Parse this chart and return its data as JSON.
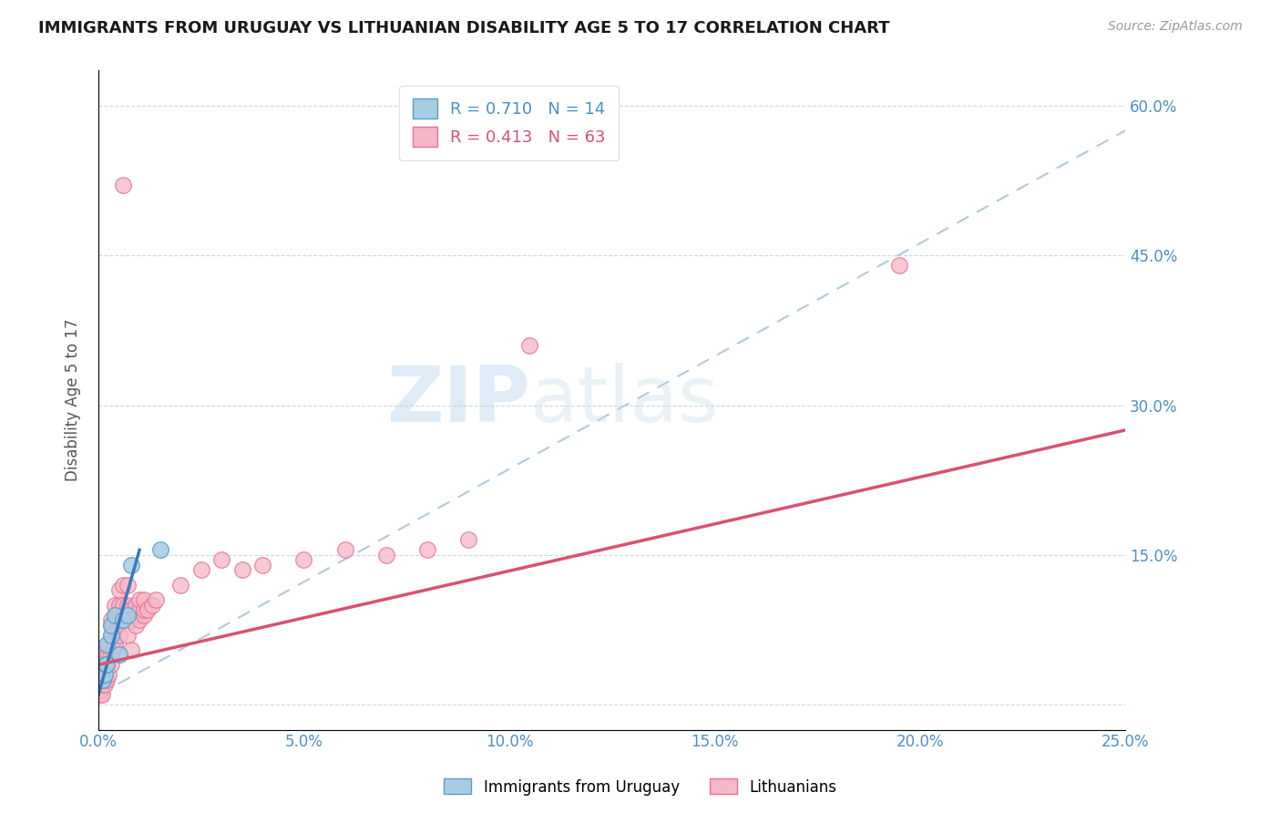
{
  "title": "IMMIGRANTS FROM URUGUAY VS LITHUANIAN DISABILITY AGE 5 TO 17 CORRELATION CHART",
  "source": "Source: ZipAtlas.com",
  "ylabel": "Disability Age 5 to 17",
  "y_ticks": [
    0.0,
    0.15,
    0.3,
    0.45,
    0.6
  ],
  "y_tick_labels": [
    "",
    "15.0%",
    "30.0%",
    "45.0%",
    "60.0%"
  ],
  "x_ticks": [
    0.0,
    0.05,
    0.1,
    0.15,
    0.2,
    0.25
  ],
  "x_tick_labels": [
    "0.0%",
    "5.0%",
    "10.0%",
    "15.0%",
    "20.0%",
    "25.0%"
  ],
  "x_range": [
    0.0,
    0.25
  ],
  "y_range": [
    -0.025,
    0.635
  ],
  "legend_r1": "R = 0.710",
  "legend_n1": "N = 14",
  "legend_r2": "R = 0.413",
  "legend_n2": "N = 63",
  "color_blue_fill": "#a8cce4",
  "color_blue_edge": "#5b9ec9",
  "color_blue_line": "#3a7abf",
  "color_pink_fill": "#f5b8c8",
  "color_pink_edge": "#e87090",
  "color_pink_line": "#d95070",
  "color_axis_labels": "#4a90c4",
  "color_dashed": "#b0c8e0",
  "watermark_zip": "ZIP",
  "watermark_atlas": "atlas",
  "uruguay_points": [
    [
      0.0008,
      0.025
    ],
    [
      0.0012,
      0.025
    ],
    [
      0.0015,
      0.03
    ],
    [
      0.0018,
      0.04
    ],
    [
      0.002,
      0.04
    ],
    [
      0.002,
      0.06
    ],
    [
      0.003,
      0.07
    ],
    [
      0.003,
      0.08
    ],
    [
      0.004,
      0.09
    ],
    [
      0.005,
      0.05
    ],
    [
      0.006,
      0.085
    ],
    [
      0.007,
      0.09
    ],
    [
      0.008,
      0.14
    ],
    [
      0.015,
      0.155
    ]
  ],
  "lithuanian_points": [
    [
      0.0005,
      0.01
    ],
    [
      0.0005,
      0.015
    ],
    [
      0.001,
      0.01
    ],
    [
      0.001,
      0.02
    ],
    [
      0.0015,
      0.02
    ],
    [
      0.0015,
      0.03
    ],
    [
      0.002,
      0.025
    ],
    [
      0.002,
      0.04
    ],
    [
      0.002,
      0.05
    ],
    [
      0.0025,
      0.03
    ],
    [
      0.0025,
      0.05
    ],
    [
      0.0025,
      0.06
    ],
    [
      0.003,
      0.04
    ],
    [
      0.003,
      0.05
    ],
    [
      0.003,
      0.07
    ],
    [
      0.003,
      0.08
    ],
    [
      0.003,
      0.085
    ],
    [
      0.0035,
      0.055
    ],
    [
      0.0035,
      0.065
    ],
    [
      0.0035,
      0.08
    ],
    [
      0.004,
      0.06
    ],
    [
      0.004,
      0.075
    ],
    [
      0.004,
      0.09
    ],
    [
      0.004,
      0.1
    ],
    [
      0.0045,
      0.085
    ],
    [
      0.005,
      0.07
    ],
    [
      0.005,
      0.085
    ],
    [
      0.005,
      0.1
    ],
    [
      0.005,
      0.115
    ],
    [
      0.006,
      0.09
    ],
    [
      0.006,
      0.1
    ],
    [
      0.006,
      0.12
    ],
    [
      0.007,
      0.07
    ],
    [
      0.007,
      0.09
    ],
    [
      0.007,
      0.1
    ],
    [
      0.007,
      0.12
    ],
    [
      0.008,
      0.055
    ],
    [
      0.008,
      0.085
    ],
    [
      0.008,
      0.095
    ],
    [
      0.009,
      0.08
    ],
    [
      0.009,
      0.09
    ],
    [
      0.009,
      0.1
    ],
    [
      0.01,
      0.085
    ],
    [
      0.01,
      0.095
    ],
    [
      0.01,
      0.105
    ],
    [
      0.011,
      0.09
    ],
    [
      0.011,
      0.095
    ],
    [
      0.011,
      0.105
    ],
    [
      0.012,
      0.095
    ],
    [
      0.013,
      0.1
    ],
    [
      0.014,
      0.105
    ],
    [
      0.02,
      0.12
    ],
    [
      0.025,
      0.135
    ],
    [
      0.03,
      0.145
    ],
    [
      0.035,
      0.135
    ],
    [
      0.04,
      0.14
    ],
    [
      0.05,
      0.145
    ],
    [
      0.06,
      0.155
    ],
    [
      0.07,
      0.15
    ],
    [
      0.08,
      0.155
    ],
    [
      0.09,
      0.165
    ],
    [
      0.105,
      0.36
    ],
    [
      0.195,
      0.44
    ],
    [
      0.006,
      0.52
    ]
  ],
  "uruguay_line_solid": {
    "x0": 0.0,
    "y0": 0.01,
    "x1": 0.01,
    "y1": 0.155
  },
  "uruguay_line_dashed": {
    "x0": 0.0,
    "y0": 0.01,
    "x1": 0.25,
    "y1": 0.575
  },
  "lithuanian_line": {
    "x0": 0.0,
    "y0": 0.04,
    "x1": 0.25,
    "y1": 0.275
  }
}
